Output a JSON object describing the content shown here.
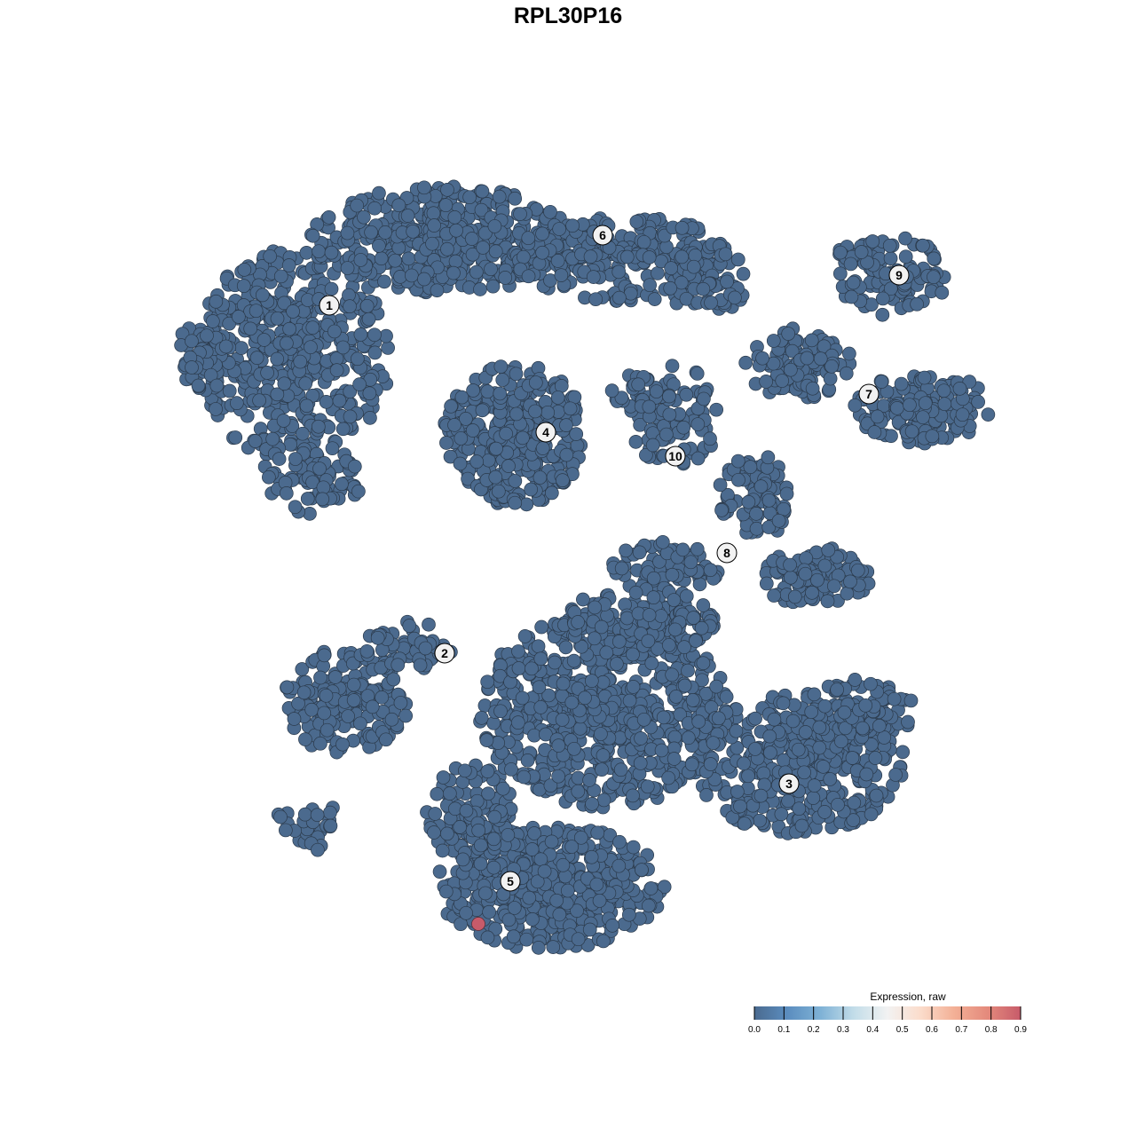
{
  "chart_data": {
    "type": "scatter",
    "title": "RPL30P16",
    "xlabel": "",
    "ylabel": "",
    "grid": false,
    "axes_visible": false,
    "cluster_labels": [
      "1",
      "2",
      "3",
      "4",
      "5",
      "6",
      "7",
      "8",
      "9",
      "10"
    ],
    "point_expression_default": 0.0,
    "highlighted_points": [
      {
        "cluster": "5",
        "expression": 0.9
      }
    ],
    "legend": {
      "title": "Expression, raw",
      "placement": "bottom-right",
      "ticks": [
        "0.0",
        "0.1",
        "0.2",
        "0.3",
        "0.4",
        "0.5",
        "0.6",
        "0.7",
        "0.8",
        "0.9"
      ],
      "range": [
        0.0,
        0.9
      ],
      "colors": [
        "#4a6a8f",
        "#5b8dbf",
        "#7fb2d6",
        "#c3dde9",
        "#f2f2f2",
        "#fbdccb",
        "#f3b096",
        "#e48a7c",
        "#c75b6a"
      ]
    },
    "point_color_low": "#4b6a8e",
    "point_color_high": "#c75b6a"
  }
}
